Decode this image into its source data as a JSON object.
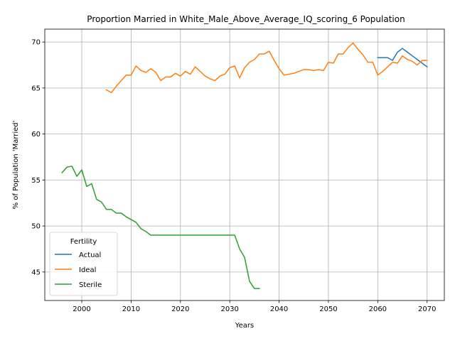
{
  "chart_data": {
    "type": "line",
    "title": "Proportion Married in White_Male_Above_Average_IQ_scoring_6 Population",
    "xlabel": "Years",
    "ylabel": "% of Population 'Married'",
    "xlim": [
      1992.5,
      2073.5
    ],
    "ylim": [
      41.9,
      71.4
    ],
    "xticks": [
      2000,
      2010,
      2020,
      2030,
      2040,
      2050,
      2060,
      2070
    ],
    "yticks": [
      45,
      50,
      55,
      60,
      65,
      70
    ],
    "grid": true,
    "legend": {
      "title": "Fertility",
      "placement": "lower-left"
    },
    "series": [
      {
        "name": "Actual",
        "color": "#1f77b4",
        "x": [
          2060,
          2061,
          2062,
          2063,
          2064,
          2065,
          2066,
          2067,
          2068,
          2069,
          2070
        ],
        "y": [
          68.3,
          68.3,
          68.3,
          68.0,
          68.9,
          69.3,
          68.9,
          68.5,
          68.1,
          67.7,
          67.3
        ]
      },
      {
        "name": "Ideal",
        "color": "#ff7f0e",
        "x": [
          2005,
          2006,
          2007,
          2008,
          2009,
          2010,
          2011,
          2012,
          2013,
          2014,
          2015,
          2016,
          2017,
          2018,
          2019,
          2020,
          2021,
          2022,
          2023,
          2024,
          2025,
          2026,
          2027,
          2028,
          2029,
          2030,
          2031,
          2032,
          2033,
          2034,
          2035,
          2036,
          2037,
          2038,
          2039,
          2040,
          2041,
          2042,
          2043,
          2044,
          2045,
          2046,
          2047,
          2048,
          2049,
          2050,
          2051,
          2052,
          2053,
          2054,
          2055,
          2056,
          2057,
          2058,
          2059,
          2060,
          2061,
          2062,
          2063,
          2064,
          2065,
          2066,
          2067,
          2068,
          2069,
          2070
        ],
        "y": [
          64.8,
          64.5,
          65.2,
          65.8,
          66.4,
          66.4,
          67.4,
          66.9,
          66.7,
          67.1,
          66.7,
          65.8,
          66.2,
          66.2,
          66.6,
          66.3,
          66.8,
          66.5,
          67.3,
          66.8,
          66.3,
          66.0,
          65.8,
          66.3,
          66.5,
          67.2,
          67.4,
          66.1,
          67.2,
          67.8,
          68.1,
          68.7,
          68.7,
          69.0,
          68.0,
          67.1,
          66.4,
          66.5,
          66.6,
          66.8,
          67.0,
          67.0,
          66.9,
          67.0,
          66.9,
          67.8,
          67.7,
          68.7,
          68.7,
          69.4,
          69.9,
          69.2,
          68.6,
          67.8,
          67.8,
          66.4,
          66.8,
          67.3,
          67.8,
          67.7,
          68.5,
          68.1,
          67.9,
          67.5,
          68.0,
          68.0
        ]
      },
      {
        "name": "Sterile",
        "color": "#2ca02c",
        "x": [
          1996,
          1997,
          1998,
          1999,
          2000,
          2001,
          2002,
          2003,
          2004,
          2005,
          2006,
          2007,
          2008,
          2009,
          2010,
          2011,
          2012,
          2013,
          2014,
          2015,
          2016,
          2017,
          2018,
          2019,
          2020,
          2021,
          2022,
          2023,
          2024,
          2025,
          2026,
          2027,
          2028,
          2029,
          2030,
          2031,
          2032,
          2033,
          2034,
          2035,
          2036
        ],
        "y": [
          55.8,
          56.4,
          56.5,
          55.4,
          56.1,
          54.3,
          54.6,
          52.9,
          52.6,
          51.8,
          51.8,
          51.4,
          51.4,
          51.0,
          50.7,
          50.4,
          49.7,
          49.4,
          49.0,
          49.0,
          49.0,
          49.0,
          49.0,
          49.0,
          49.0,
          49.0,
          49.0,
          49.0,
          49.0,
          49.0,
          49.0,
          49.0,
          49.0,
          49.0,
          49.0,
          49.0,
          47.5,
          46.6,
          44.0,
          43.2,
          43.2
        ]
      }
    ]
  }
}
